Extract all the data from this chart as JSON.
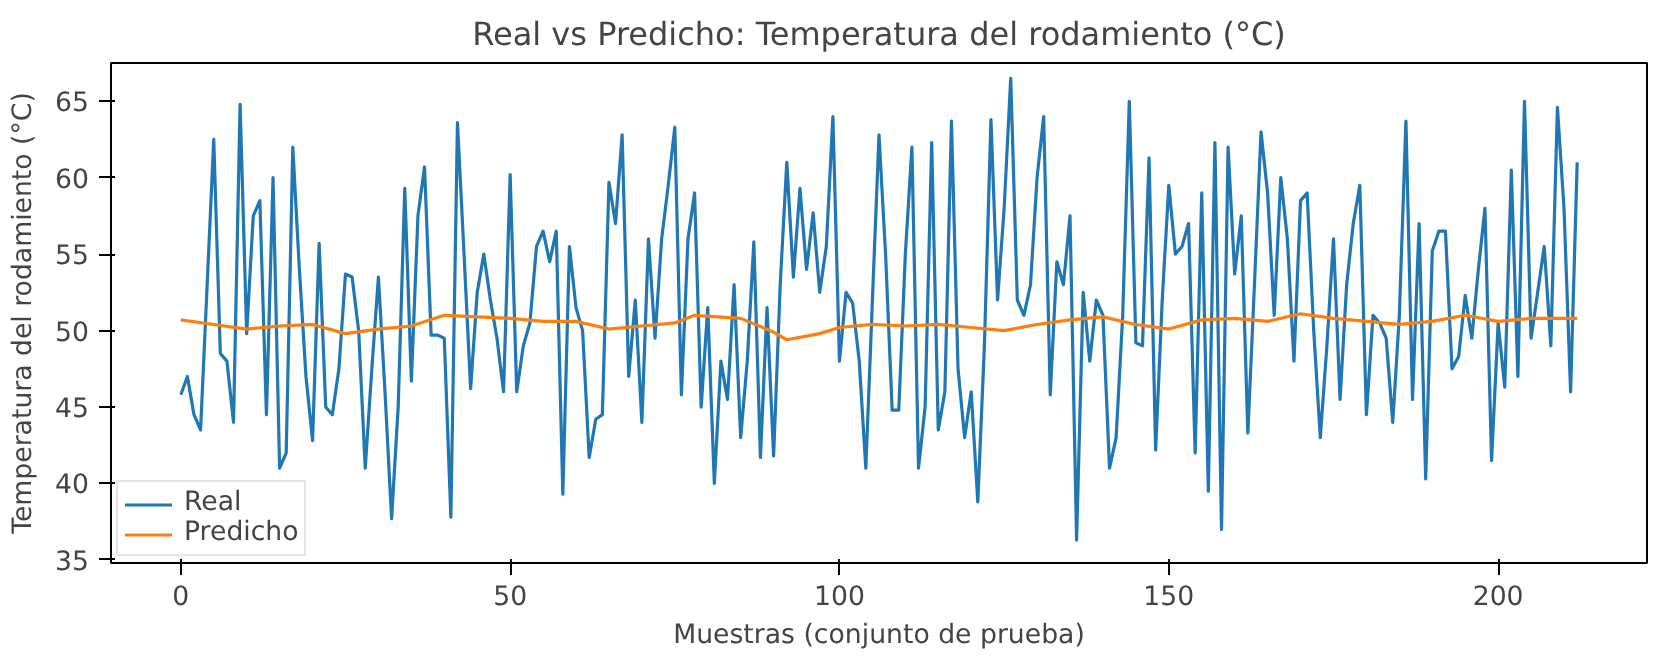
{
  "chart_data": {
    "type": "line",
    "title": "Real vs Predicho: Temperatura del rodamiento (°C)",
    "xlabel": "Muestras (conjunto de prueba)",
    "ylabel": "Temperatura del rodamiento (°C)",
    "xlim": [
      -10.6,
      222.6
    ],
    "ylim": [
      34.8,
      67.5
    ],
    "xticks": [
      0,
      50,
      100,
      150,
      200
    ],
    "yticks": [
      35,
      40,
      45,
      50,
      55,
      60,
      65
    ],
    "grid": false,
    "legend": "bottom left",
    "line_style": "solid",
    "series": [
      {
        "name": "Real",
        "color": "#1f77b4",
        "x": [
          0,
          1,
          2,
          3,
          4,
          5,
          6,
          7,
          8,
          9,
          10,
          11,
          12,
          13,
          14,
          15,
          16,
          17,
          18,
          19,
          20,
          21,
          22,
          23,
          24,
          25,
          26,
          27,
          28,
          29,
          30,
          31,
          32,
          33,
          34,
          35,
          36,
          37,
          38,
          39,
          40,
          41,
          42,
          43,
          44,
          45,
          46,
          47,
          48,
          49,
          50,
          51,
          52,
          53,
          54,
          55,
          56,
          57,
          58,
          59,
          60,
          61,
          62,
          63,
          64,
          65,
          66,
          67,
          68,
          69,
          70,
          71,
          72,
          73,
          74,
          75,
          76,
          77,
          78,
          79,
          80,
          81,
          82,
          83,
          84,
          85,
          86,
          87,
          88,
          89,
          90,
          91,
          92,
          93,
          94,
          95,
          96,
          97,
          98,
          99,
          100,
          101,
          102,
          103,
          104,
          105,
          106,
          107,
          108,
          109,
          110,
          111,
          112,
          113,
          114,
          115,
          116,
          117,
          118,
          119,
          120,
          121,
          122,
          123,
          124,
          125,
          126,
          127,
          128,
          129,
          130,
          131,
          132,
          133,
          134,
          135,
          136,
          137,
          138,
          139,
          140,
          141,
          142,
          143,
          144,
          145,
          146,
          147,
          148,
          149,
          150,
          151,
          152,
          153,
          154,
          155,
          156,
          157,
          158,
          159,
          160,
          161,
          162,
          163,
          164,
          165,
          166,
          167,
          168,
          169,
          170,
          171,
          172,
          173,
          174,
          175,
          176,
          177,
          178,
          179,
          180,
          181,
          182,
          183,
          184,
          185,
          186,
          187,
          188,
          189,
          190,
          191,
          192,
          193,
          194,
          195,
          196,
          197,
          198,
          199,
          200,
          201,
          202,
          203,
          204,
          205,
          206,
          207,
          208,
          209,
          210,
          211,
          212
        ],
        "values": [
          45.8,
          47,
          44.5,
          43.5,
          53,
          62.5,
          48.5,
          48,
          44,
          64.8,
          49.8,
          57.5,
          58.5,
          44.5,
          60,
          41,
          42,
          62,
          54,
          47,
          42.8,
          55.7,
          45,
          44.5,
          47.5,
          53.7,
          53.5,
          50,
          41,
          47.5,
          53.5,
          46,
          37.7,
          45,
          59.3,
          46.7,
          57.5,
          60.7,
          49.7,
          49.7,
          49.5,
          37.8,
          63.6,
          55,
          46.2,
          52.5,
          55,
          52,
          49.5,
          46,
          60.2,
          46,
          49,
          50.5,
          55.5,
          56.5,
          54.5,
          56.5,
          39.3,
          55.5,
          51.5,
          50,
          41.7,
          44.2,
          44.5,
          59.7,
          57,
          62.8,
          47,
          52,
          44,
          56,
          49.5,
          56,
          59.5,
          63.3,
          45.8,
          56,
          59,
          45,
          51.5,
          40,
          48,
          45.5,
          53,
          43,
          48,
          55.8,
          41.7,
          51.5,
          41.8,
          53,
          61,
          53.5,
          59.3,
          54,
          57.7,
          52.5,
          55.5,
          64,
          48,
          52.5,
          51.8,
          48,
          41,
          52,
          62.8,
          55,
          44.8,
          44.8,
          55,
          62,
          41,
          45,
          62.3,
          43.5,
          46,
          63.7,
          47.5,
          43,
          46,
          38.8,
          49,
          63.8,
          52,
          58,
          66.5,
          52,
          51,
          53,
          60,
          64,
          45.8,
          54.5,
          53,
          57.5,
          36.3,
          52.5,
          48,
          52,
          51,
          41,
          43,
          51,
          65,
          49.2,
          49,
          61.3,
          42.2,
          52,
          59.5,
          55,
          55.5,
          57,
          42,
          59,
          39.5,
          62.3,
          37,
          62,
          53.7,
          57.5,
          43.3,
          53,
          63,
          59,
          51,
          60,
          56,
          48,
          58.5,
          59,
          50,
          43,
          49,
          56,
          45.5,
          53,
          57,
          59.5,
          44.5,
          51,
          50.5,
          49.5,
          44,
          51,
          63.7,
          45.5,
          57,
          40.3,
          55.2,
          56.5,
          56.5,
          47.5,
          48.3,
          52.3,
          49.5,
          54,
          58,
          41.5,
          50.5,
          46.3,
          60.5,
          47,
          65,
          49.5,
          52.5,
          55.5,
          49,
          64.6,
          58,
          46,
          61
        ]
      },
      {
        "name": "Predicho",
        "color": "#ff7f0e",
        "x": [
          0,
          5,
          10,
          15,
          20,
          25,
          30,
          35,
          40,
          45,
          50,
          55,
          60,
          65,
          70,
          75,
          78,
          85,
          90,
          92,
          97,
          100,
          105,
          110,
          115,
          120,
          125,
          130,
          135,
          140,
          145,
          150,
          155,
          160,
          165,
          170,
          175,
          180,
          185,
          190,
          195,
          200,
          205,
          212
        ],
        "values": [
          50.7,
          50.4,
          50.1,
          50.3,
          50.4,
          49.8,
          50.1,
          50.3,
          51,
          50.9,
          50.8,
          50.6,
          50.6,
          50.1,
          50.3,
          50.5,
          51,
          50.8,
          49.9,
          49.4,
          49.8,
          50.2,
          50.4,
          50.3,
          50.4,
          50.2,
          50,
          50.4,
          50.7,
          50.9,
          50.4,
          50.1,
          50.7,
          50.8,
          50.6,
          51.1,
          50.8,
          50.6,
          50.4,
          50.6,
          51,
          50.6,
          50.8,
          50.8
        ]
      }
    ]
  }
}
